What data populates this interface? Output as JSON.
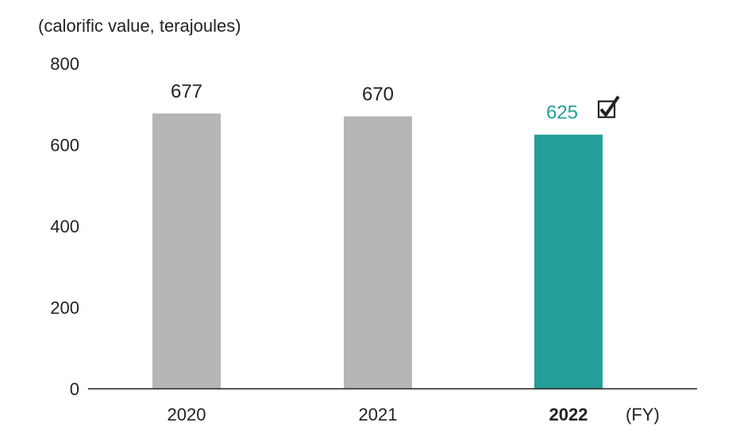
{
  "chart_data": {
    "type": "bar",
    "unit_label": "(calorific value, terajoules)",
    "x_unit_label": "(FY)",
    "categories": [
      "2020",
      "2021",
      "2022"
    ],
    "values": [
      677,
      670,
      625
    ],
    "data_labels": [
      "677",
      "670",
      "625"
    ],
    "highlight_index": 2,
    "highlight_mark": "check-box-icon",
    "ylim": [
      0,
      800
    ],
    "yticks": [
      0,
      200,
      400,
      600,
      800
    ],
    "grid": false,
    "colors": {
      "bar": "#b5b6b5",
      "highlight_bar": "#249e98",
      "highlight_text": "#249e98",
      "axis": "#222222"
    }
  }
}
